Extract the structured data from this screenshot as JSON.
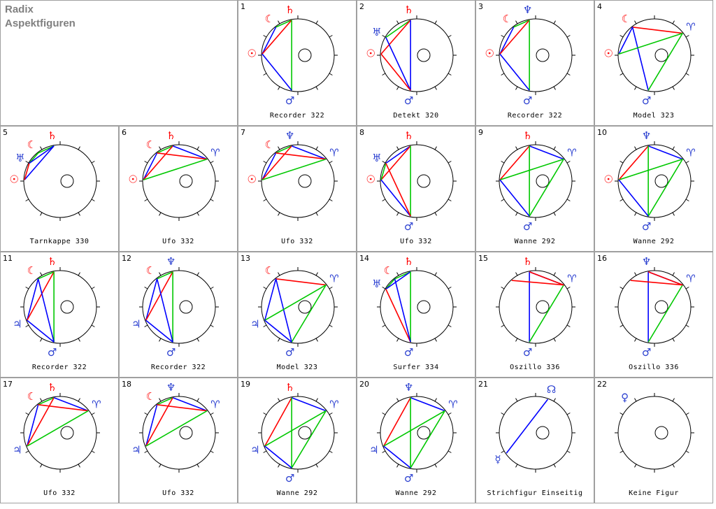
{
  "header": {
    "title": "Radix",
    "subtitle": "Aspektfiguren"
  },
  "colors": {
    "red": "#ff0000",
    "green": "#00c800",
    "blue": "#0000ff",
    "symbol_blue": "#2a3fd0",
    "symbol_red": "#e00000"
  },
  "figures": [
    {
      "num": "1",
      "label": "Recorder 322",
      "symbols": [
        [
          "moon",
          "#ff0000",
          "☾"
        ],
        [
          "sat",
          "#ff0000",
          "♄"
        ],
        [
          "sun",
          "#ff0000",
          "☉"
        ],
        [
          "mars",
          "#2a3fd0",
          "♂"
        ]
      ]
    },
    {
      "num": "2",
      "label": "Detekt 320",
      "symbols": [
        [
          "sat",
          "#ff0000",
          "♄"
        ],
        [
          "ura",
          "#2a3fd0",
          "♅"
        ],
        [
          "sun",
          "#ff0000",
          "☉"
        ],
        [
          "mars",
          "#2a3fd0",
          "♂"
        ]
      ]
    },
    {
      "num": "3",
      "label": "Recorder 322",
      "symbols": [
        [
          "moon",
          "#ff0000",
          "☾"
        ],
        [
          "nep",
          "#2a3fd0",
          "♆"
        ],
        [
          "sun",
          "#ff0000",
          "☉"
        ],
        [
          "mars",
          "#2a3fd0",
          "♂"
        ]
      ]
    },
    {
      "num": "4",
      "label": "Model 323",
      "symbols": [
        [
          "moon",
          "#ff0000",
          "☾"
        ],
        [
          "ari",
          "#2a3fd0",
          "♈"
        ],
        [
          "sun",
          "#ff0000",
          "☉"
        ],
        [
          "mars",
          "#2a3fd0",
          "♂"
        ]
      ]
    },
    {
      "num": "5",
      "label": "Tarnkappe 330",
      "symbols": [
        [
          "moon",
          "#ff0000",
          "☾"
        ],
        [
          "sat",
          "#ff0000",
          "♄"
        ],
        [
          "ura",
          "#2a3fd0",
          "♅"
        ],
        [
          "sun",
          "#ff0000",
          "☉"
        ]
      ]
    },
    {
      "num": "6",
      "label": "Ufo 332",
      "symbols": [
        [
          "moon",
          "#ff0000",
          "☾"
        ],
        [
          "sat",
          "#ff0000",
          "♄"
        ],
        [
          "ari",
          "#2a3fd0",
          "♈"
        ],
        [
          "sun",
          "#ff0000",
          "☉"
        ]
      ]
    },
    {
      "num": "7",
      "label": "Ufo 332",
      "symbols": [
        [
          "moon",
          "#ff0000",
          "☾"
        ],
        [
          "nep",
          "#2a3fd0",
          "♆"
        ],
        [
          "ari",
          "#2a3fd0",
          "♈"
        ],
        [
          "sun",
          "#ff0000",
          "☉"
        ]
      ]
    },
    {
      "num": "8",
      "label": "Ufo 332",
      "symbols": [
        [
          "sat",
          "#ff0000",
          "♄"
        ],
        [
          "ura",
          "#2a3fd0",
          "♅"
        ],
        [
          "sun",
          "#ff0000",
          "☉"
        ],
        [
          "mars",
          "#2a3fd0",
          "♂"
        ]
      ]
    },
    {
      "num": "9",
      "label": "Wanne 292",
      "symbols": [
        [
          "sat",
          "#ff0000",
          "♄"
        ],
        [
          "ari",
          "#2a3fd0",
          "♈"
        ],
        [
          "mars",
          "#2a3fd0",
          "♂"
        ]
      ]
    },
    {
      "num": "10",
      "label": "Wanne 292",
      "symbols": [
        [
          "nep",
          "#2a3fd0",
          "♆"
        ],
        [
          "ari",
          "#2a3fd0",
          "♈"
        ],
        [
          "sun",
          "#ff0000",
          "☉"
        ],
        [
          "mars",
          "#2a3fd0",
          "♂"
        ]
      ]
    },
    {
      "num": "11",
      "label": "Recorder 322",
      "symbols": [
        [
          "moon",
          "#ff0000",
          "☾"
        ],
        [
          "sat",
          "#ff0000",
          "♄"
        ],
        [
          "jup",
          "#2a3fd0",
          "♃"
        ],
        [
          "mars",
          "#2a3fd0",
          "♂"
        ]
      ]
    },
    {
      "num": "12",
      "label": "Recorder 322",
      "symbols": [
        [
          "moon",
          "#ff0000",
          "☾"
        ],
        [
          "nep",
          "#2a3fd0",
          "♆"
        ],
        [
          "jup",
          "#2a3fd0",
          "♃"
        ],
        [
          "mars",
          "#2a3fd0",
          "♂"
        ]
      ]
    },
    {
      "num": "13",
      "label": "Model 323",
      "symbols": [
        [
          "moon",
          "#ff0000",
          "☾"
        ],
        [
          "ari",
          "#2a3fd0",
          "♈"
        ],
        [
          "jup",
          "#2a3fd0",
          "♃"
        ],
        [
          "mars",
          "#2a3fd0",
          "♂"
        ]
      ]
    },
    {
      "num": "14",
      "label": "Surfer 334",
      "symbols": [
        [
          "moon",
          "#ff0000",
          "☾"
        ],
        [
          "sat",
          "#ff0000",
          "♄"
        ],
        [
          "ura",
          "#2a3fd0",
          "♅"
        ],
        [
          "mars",
          "#2a3fd0",
          "♂"
        ]
      ]
    },
    {
      "num": "15",
      "label": "Oszillo 336",
      "symbols": [
        [
          "sat",
          "#ff0000",
          "♄"
        ],
        [
          "ari",
          "#2a3fd0",
          "♈"
        ],
        [
          "mars",
          "#2a3fd0",
          "♂"
        ]
      ]
    },
    {
      "num": "16",
      "label": "Oszillo 336",
      "symbols": [
        [
          "nep",
          "#2a3fd0",
          "♆"
        ],
        [
          "ari",
          "#2a3fd0",
          "♈"
        ],
        [
          "mars",
          "#2a3fd0",
          "♂"
        ]
      ]
    },
    {
      "num": "17",
      "label": "Ufo 332",
      "symbols": [
        [
          "moon",
          "#ff0000",
          "☾"
        ],
        [
          "sat",
          "#ff0000",
          "♄"
        ],
        [
          "ari",
          "#2a3fd0",
          "♈"
        ],
        [
          "jup",
          "#2a3fd0",
          "♃"
        ]
      ]
    },
    {
      "num": "18",
      "label": "Ufo 332",
      "symbols": [
        [
          "moon",
          "#ff0000",
          "☾"
        ],
        [
          "nep",
          "#2a3fd0",
          "♆"
        ],
        [
          "ari",
          "#2a3fd0",
          "♈"
        ],
        [
          "jup",
          "#2a3fd0",
          "♃"
        ]
      ]
    },
    {
      "num": "19",
      "label": "Wanne 292",
      "symbols": [
        [
          "sat",
          "#ff0000",
          "♄"
        ],
        [
          "ari",
          "#2a3fd0",
          "♈"
        ],
        [
          "jup",
          "#2a3fd0",
          "♃"
        ],
        [
          "mars",
          "#2a3fd0",
          "♂"
        ]
      ]
    },
    {
      "num": "20",
      "label": "Wanne 292",
      "symbols": [
        [
          "nep",
          "#2a3fd0",
          "♆"
        ],
        [
          "ari",
          "#2a3fd0",
          "♈"
        ],
        [
          "jup",
          "#2a3fd0",
          "♃"
        ],
        [
          "mars",
          "#2a3fd0",
          "♂"
        ]
      ]
    },
    {
      "num": "21",
      "label": "Strichfigur Einseitig",
      "symbols": [
        [
          "node",
          "#2a3fd0",
          "☊"
        ],
        [
          "mer",
          "#2a3fd0",
          "☿"
        ]
      ]
    },
    {
      "num": "22",
      "label": "Keine Figur",
      "symbols": [
        [
          "ven",
          "#2a3fd0",
          "♀"
        ]
      ]
    }
  ]
}
